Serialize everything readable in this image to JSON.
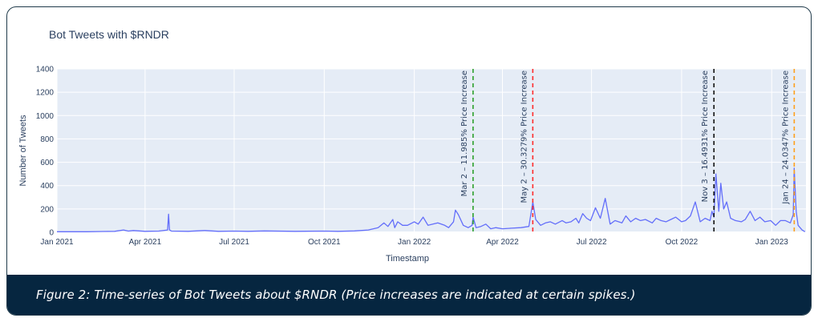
{
  "caption": "Figure 2: Time-series of Bot Tweets about $RNDR (Price increases are indicated at certain spikes.)",
  "colors": {
    "plot_bg": "#e5ecf6",
    "grid": "#ffffff",
    "series": "#636efa",
    "caption_bg": "#062640",
    "frame": "#1f3a4a"
  },
  "chart_data": {
    "type": "line",
    "title": "Bot Tweets with $RNDR",
    "xlabel": "Timestamp",
    "ylabel": "Number of Tweets",
    "ylim": [
      0,
      1400
    ],
    "xlim": [
      "2021-01-01",
      "2023-02-05"
    ],
    "grid": true,
    "yticks": [
      0,
      200,
      400,
      600,
      800,
      1000,
      1200,
      1400
    ],
    "xticks": [
      {
        "date": "2021-01-01",
        "label": "Jan 2021"
      },
      {
        "date": "2021-04-01",
        "label": "Apr 2021"
      },
      {
        "date": "2021-07-01",
        "label": "Jul 2021"
      },
      {
        "date": "2021-10-01",
        "label": "Oct 2021"
      },
      {
        "date": "2022-01-01",
        "label": "Jan 2022"
      },
      {
        "date": "2022-04-01",
        "label": "Apr 2022"
      },
      {
        "date": "2022-07-01",
        "label": "Jul 2022"
      },
      {
        "date": "2022-10-01",
        "label": "Oct 2022"
      },
      {
        "date": "2023-01-01",
        "label": "Jan 2023"
      }
    ],
    "annotations": [
      {
        "date": "2022-03-02",
        "text": "Mar 2 – 11.985% Price Increase",
        "color": "#2ca02c"
      },
      {
        "date": "2022-05-02",
        "text": "May 2 – 30.3279% Price Increase",
        "color": "#ff2b2b"
      },
      {
        "date": "2022-11-03",
        "text": "Nov 3 – 16.4931% Price Increase",
        "color": "#111111"
      },
      {
        "date": "2023-01-24",
        "text": "Jan 24 – 24.0347% Price Increase",
        "color": "#ff9f1a"
      }
    ],
    "series": [
      {
        "x": [
          "2021-01-01",
          "2021-02-01",
          "2021-03-01",
          "2021-03-10",
          "2021-03-15",
          "2021-03-20",
          "2021-04-01",
          "2021-04-15",
          "2021-04-24",
          "2021-04-25",
          "2021-04-26",
          "2021-04-28",
          "2021-05-15",
          "2021-06-01",
          "2021-06-15",
          "2021-07-01",
          "2021-07-15",
          "2021-08-01",
          "2021-09-01",
          "2021-10-01",
          "2021-10-15",
          "2021-11-01",
          "2021-11-15",
          "2021-11-25",
          "2021-12-01",
          "2021-12-05",
          "2021-12-10",
          "2021-12-12",
          "2021-12-15",
          "2021-12-20",
          "2021-12-25",
          "2022-01-01",
          "2022-01-05",
          "2022-01-10",
          "2022-01-15",
          "2022-01-20",
          "2022-01-25",
          "2022-02-01",
          "2022-02-05",
          "2022-02-10",
          "2022-02-12",
          "2022-02-15",
          "2022-02-20",
          "2022-02-25",
          "2022-03-01",
          "2022-03-02",
          "2022-03-05",
          "2022-03-10",
          "2022-03-15",
          "2022-03-20",
          "2022-03-25",
          "2022-04-01",
          "2022-04-10",
          "2022-04-20",
          "2022-04-28",
          "2022-05-02",
          "2022-05-05",
          "2022-05-10",
          "2022-05-15",
          "2022-05-20",
          "2022-05-25",
          "2022-06-01",
          "2022-06-05",
          "2022-06-10",
          "2022-06-15",
          "2022-06-18",
          "2022-06-22",
          "2022-06-26",
          "2022-06-30",
          "2022-07-05",
          "2022-07-10",
          "2022-07-15",
          "2022-07-20",
          "2022-07-25",
          "2022-08-01",
          "2022-08-05",
          "2022-08-10",
          "2022-08-15",
          "2022-08-20",
          "2022-08-25",
          "2022-09-01",
          "2022-09-05",
          "2022-09-10",
          "2022-09-15",
          "2022-09-20",
          "2022-09-25",
          "2022-10-01",
          "2022-10-05",
          "2022-10-10",
          "2022-10-15",
          "2022-10-20",
          "2022-10-25",
          "2022-10-30",
          "2022-11-01",
          "2022-11-03",
          "2022-11-05",
          "2022-11-08",
          "2022-11-10",
          "2022-11-13",
          "2022-11-16",
          "2022-11-20",
          "2022-11-25",
          "2022-12-01",
          "2022-12-05",
          "2022-12-10",
          "2022-12-15",
          "2022-12-20",
          "2022-12-25",
          "2022-12-31",
          "2023-01-05",
          "2023-01-10",
          "2023-01-15",
          "2023-01-20",
          "2023-01-23",
          "2023-01-24",
          "2023-01-26",
          "2023-01-28",
          "2023-02-01",
          "2023-02-04"
        ],
        "y": [
          5,
          5,
          8,
          20,
          10,
          15,
          8,
          10,
          20,
          155,
          20,
          10,
          8,
          15,
          8,
          10,
          8,
          12,
          8,
          10,
          8,
          12,
          20,
          40,
          80,
          50,
          110,
          40,
          90,
          60,
          60,
          90,
          70,
          130,
          60,
          70,
          80,
          60,
          40,
          90,
          190,
          150,
          60,
          40,
          60,
          130,
          40,
          50,
          70,
          30,
          40,
          30,
          35,
          40,
          50,
          260,
          110,
          60,
          80,
          90,
          70,
          100,
          80,
          90,
          120,
          80,
          160,
          120,
          100,
          210,
          120,
          290,
          70,
          100,
          80,
          140,
          90,
          120,
          100,
          110,
          80,
          120,
          100,
          90,
          110,
          130,
          90,
          100,
          140,
          260,
          90,
          120,
          100,
          180,
          130,
          500,
          180,
          420,
          200,
          260,
          120,
          100,
          90,
          110,
          180,
          100,
          130,
          90,
          100,
          60,
          100,
          100,
          80,
          150,
          550,
          180,
          60,
          20,
          5
        ]
      }
    ]
  }
}
